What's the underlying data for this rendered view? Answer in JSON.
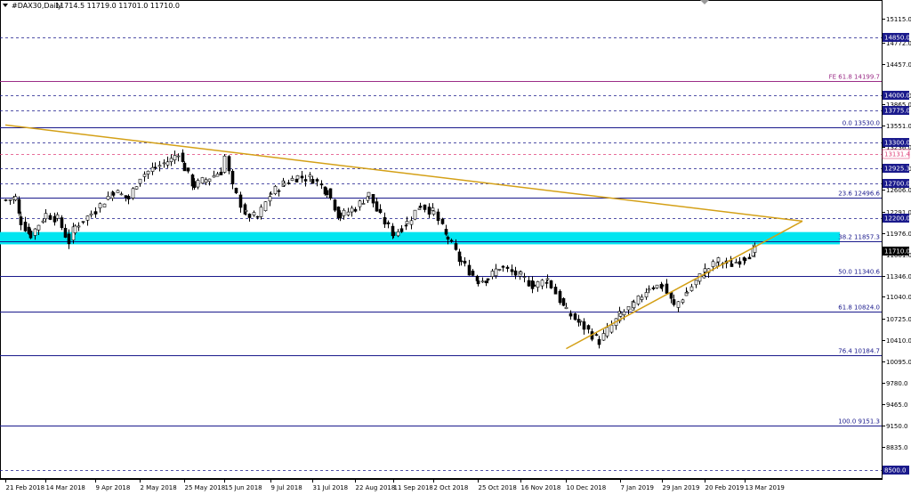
{
  "header": {
    "symbol_label": "#DAX30,Daily",
    "ohlc_text": "11714.5 11719.0 11701.0 11710.0"
  },
  "chart_data": {
    "type": "candlestick",
    "price_range": [
      8382,
      15380
    ],
    "y_ticks": [
      15115.0,
      14772.0,
      14457.0,
      14000.0,
      13865.0,
      13551.0,
      13236.0,
      12921.0,
      12606.0,
      12291.0,
      11976.0,
      11661.0,
      11346.0,
      11040.0,
      10725.0,
      10410.0,
      10095.0,
      9780.0,
      9465.0,
      9150.0,
      8835.0,
      8520.0
    ],
    "date_labels": [
      "21 Feb 2018",
      "14 Mar 2018",
      "9 Apr 2018",
      "2 May 2018",
      "25 May 2018",
      "15 Jun 2018",
      "9 Jul 2018",
      "31 Jul 2018",
      "22 Aug 2018",
      "11 Sep 2018",
      "2 Oct 2018",
      "25 Oct 2018",
      "16 Nov 2018",
      "10 Dec 2018",
      "7 Jan 2019",
      "29 Jan 2019",
      "20 Feb 2019",
      "13 Mar 2019"
    ],
    "horizontal_levels": [
      {
        "price": 14850.0,
        "label": "14850.0",
        "style": "dashed",
        "color": "#1a1a8c",
        "tag": true
      },
      {
        "price": 14000.0,
        "label": "14000.0",
        "style": "dashed",
        "color": "#1a1a8c",
        "tag": true
      },
      {
        "price": 13775.0,
        "label": "13775.0",
        "style": "dashed",
        "color": "#1a1a8c",
        "tag": true
      },
      {
        "price": 13300.0,
        "label": "13300.0",
        "style": "dashed",
        "color": "#1a1a8c",
        "tag": true
      },
      {
        "price": 13131.4,
        "label": "13131.4",
        "style": "dashed",
        "color": "#e0407a",
        "tag": true
      },
      {
        "price": 12925.3,
        "label": "12925.3",
        "style": "dashed",
        "color": "#1a1a8c",
        "tag": true
      },
      {
        "price": 12700.0,
        "label": "12700.0",
        "style": "dashed",
        "color": "#1a1a8c",
        "tag": true
      },
      {
        "price": 12200.0,
        "label": "12200.0",
        "style": "dashed",
        "color": "#1a1a8c",
        "tag": true
      },
      {
        "price": 11710.0,
        "label": "11710.0",
        "style": "none",
        "color": "#000000",
        "tag": true
      },
      {
        "price": 8500.0,
        "label": "8500.0",
        "style": "dashed",
        "color": "#1a1a8c",
        "tag": true
      }
    ],
    "fib_levels": [
      {
        "price": 14199.7,
        "label": "FE  61.8  14199.7",
        "color": "#9b2d87"
      },
      {
        "price": 13530.0,
        "label": "0.0  13530.0",
        "color": "#1a1a8c"
      },
      {
        "price": 12496.6,
        "label": "23.6  12496.6",
        "color": "#1a1a8c"
      },
      {
        "price": 11857.3,
        "label": "38.2  11857.3",
        "color": "#1a1a8c"
      },
      {
        "price": 11340.6,
        "label": "50.0  11340.6",
        "color": "#1a1a8c"
      },
      {
        "price": 10824.0,
        "label": "61.8  10824.0",
        "color": "#1a1a8c"
      },
      {
        "price": 10184.7,
        "label": "76.4  10184.7",
        "color": "#1a1a8c"
      },
      {
        "price": 9151.3,
        "label": "100.0  9151.3",
        "color": "#1a1a8c"
      }
    ],
    "zone": {
      "from": 11810,
      "to": 11990,
      "color": "#00e5f0"
    },
    "trendlines": [
      {
        "from": [
          "21 Feb 2018",
          13560
        ],
        "to": [
          "12 Apr 2019",
          12150
        ],
        "color": "#d4a017"
      },
      {
        "from": [
          "10 Dec 2018",
          10280
        ],
        "to": [
          "12 Apr 2019",
          12150
        ],
        "color": "#d4a017"
      }
    ],
    "candles": [
      {
        "date": "21 Feb 2018",
        "close": 12460
      },
      {
        "date": "26 Feb 2018",
        "close": 12490
      },
      {
        "date": "1 Mar 2018",
        "close": 12140
      },
      {
        "date": "6 Mar 2018",
        "close": 11950
      },
      {
        "date": "14 Mar 2018",
        "close": 12250
      },
      {
        "date": "20 Mar 2018",
        "close": 12180
      },
      {
        "date": "26 Mar 2018",
        "close": 11850
      },
      {
        "date": "29 Mar 2018",
        "close": 12070
      },
      {
        "date": "9 Apr 2018",
        "close": 12320
      },
      {
        "date": "18 Apr 2018",
        "close": 12590
      },
      {
        "date": "26 Apr 2018",
        "close": 12480
      },
      {
        "date": "2 May 2018",
        "close": 12810
      },
      {
        "date": "10 May 2018",
        "close": 12940
      },
      {
        "date": "18 May 2018",
        "close": 13050
      },
      {
        "date": "22 May 2018",
        "close": 13170
      },
      {
        "date": "25 May 2018",
        "close": 12930
      },
      {
        "date": "30 May 2018",
        "close": 12670
      },
      {
        "date": "5 Jun 2018",
        "close": 12760
      },
      {
        "date": "13 Jun 2018",
        "close": 12880
      },
      {
        "date": "15 Jun 2018",
        "close": 13100
      },
      {
        "date": "19 Jun 2018",
        "close": 12640
      },
      {
        "date": "26 Jun 2018",
        "close": 12250
      },
      {
        "date": "2 Jul 2018",
        "close": 12200
      },
      {
        "date": "9 Jul 2018",
        "close": 12560
      },
      {
        "date": "16 Jul 2018",
        "close": 12710
      },
      {
        "date": "23 Jul 2018",
        "close": 12800
      },
      {
        "date": "31 Jul 2018",
        "close": 12770
      },
      {
        "date": "7 Aug 2018",
        "close": 12600
      },
      {
        "date": "14 Aug 2018",
        "close": 12220
      },
      {
        "date": "22 Aug 2018",
        "close": 12350
      },
      {
        "date": "29 Aug 2018",
        "close": 12540
      },
      {
        "date": "4 Sep 2018",
        "close": 12210
      },
      {
        "date": "11 Sep 2018",
        "close": 11960
      },
      {
        "date": "18 Sep 2018",
        "close": 12130
      },
      {
        "date": "25 Sep 2018",
        "close": 12390
      },
      {
        "date": "2 Oct 2018",
        "close": 12270
      },
      {
        "date": "9 Oct 2018",
        "close": 11900
      },
      {
        "date": "16 Oct 2018",
        "close": 11550
      },
      {
        "date": "25 Oct 2018",
        "close": 11280
      },
      {
        "date": "30 Oct 2018",
        "close": 11310
      },
      {
        "date": "5 Nov 2018",
        "close": 11480
      },
      {
        "date": "16 Nov 2018",
        "close": 11340
      },
      {
        "date": "23 Nov 2018",
        "close": 11200
      },
      {
        "date": "30 Nov 2018",
        "close": 11300
      },
      {
        "date": "10 Dec 2018",
        "close": 10820
      },
      {
        "date": "17 Dec 2018",
        "close": 10650
      },
      {
        "date": "27 Dec 2018",
        "close": 10390
      },
      {
        "date": "7 Jan 2019",
        "close": 10780
      },
      {
        "date": "14 Jan 2019",
        "close": 10920
      },
      {
        "date": "22 Jan 2019",
        "close": 11190
      },
      {
        "date": "29 Jan 2019",
        "close": 11200
      },
      {
        "date": "4 Feb 2019",
        "close": 10900
      },
      {
        "date": "11 Feb 2019",
        "close": 11120
      },
      {
        "date": "20 Feb 2019",
        "close": 11420
      },
      {
        "date": "27 Feb 2019",
        "close": 11560
      },
      {
        "date": "6 Mar 2019",
        "close": 11520
      },
      {
        "date": "13 Mar 2019",
        "close": 11630
      },
      {
        "date": "18 Mar 2019",
        "close": 11710
      }
    ]
  }
}
